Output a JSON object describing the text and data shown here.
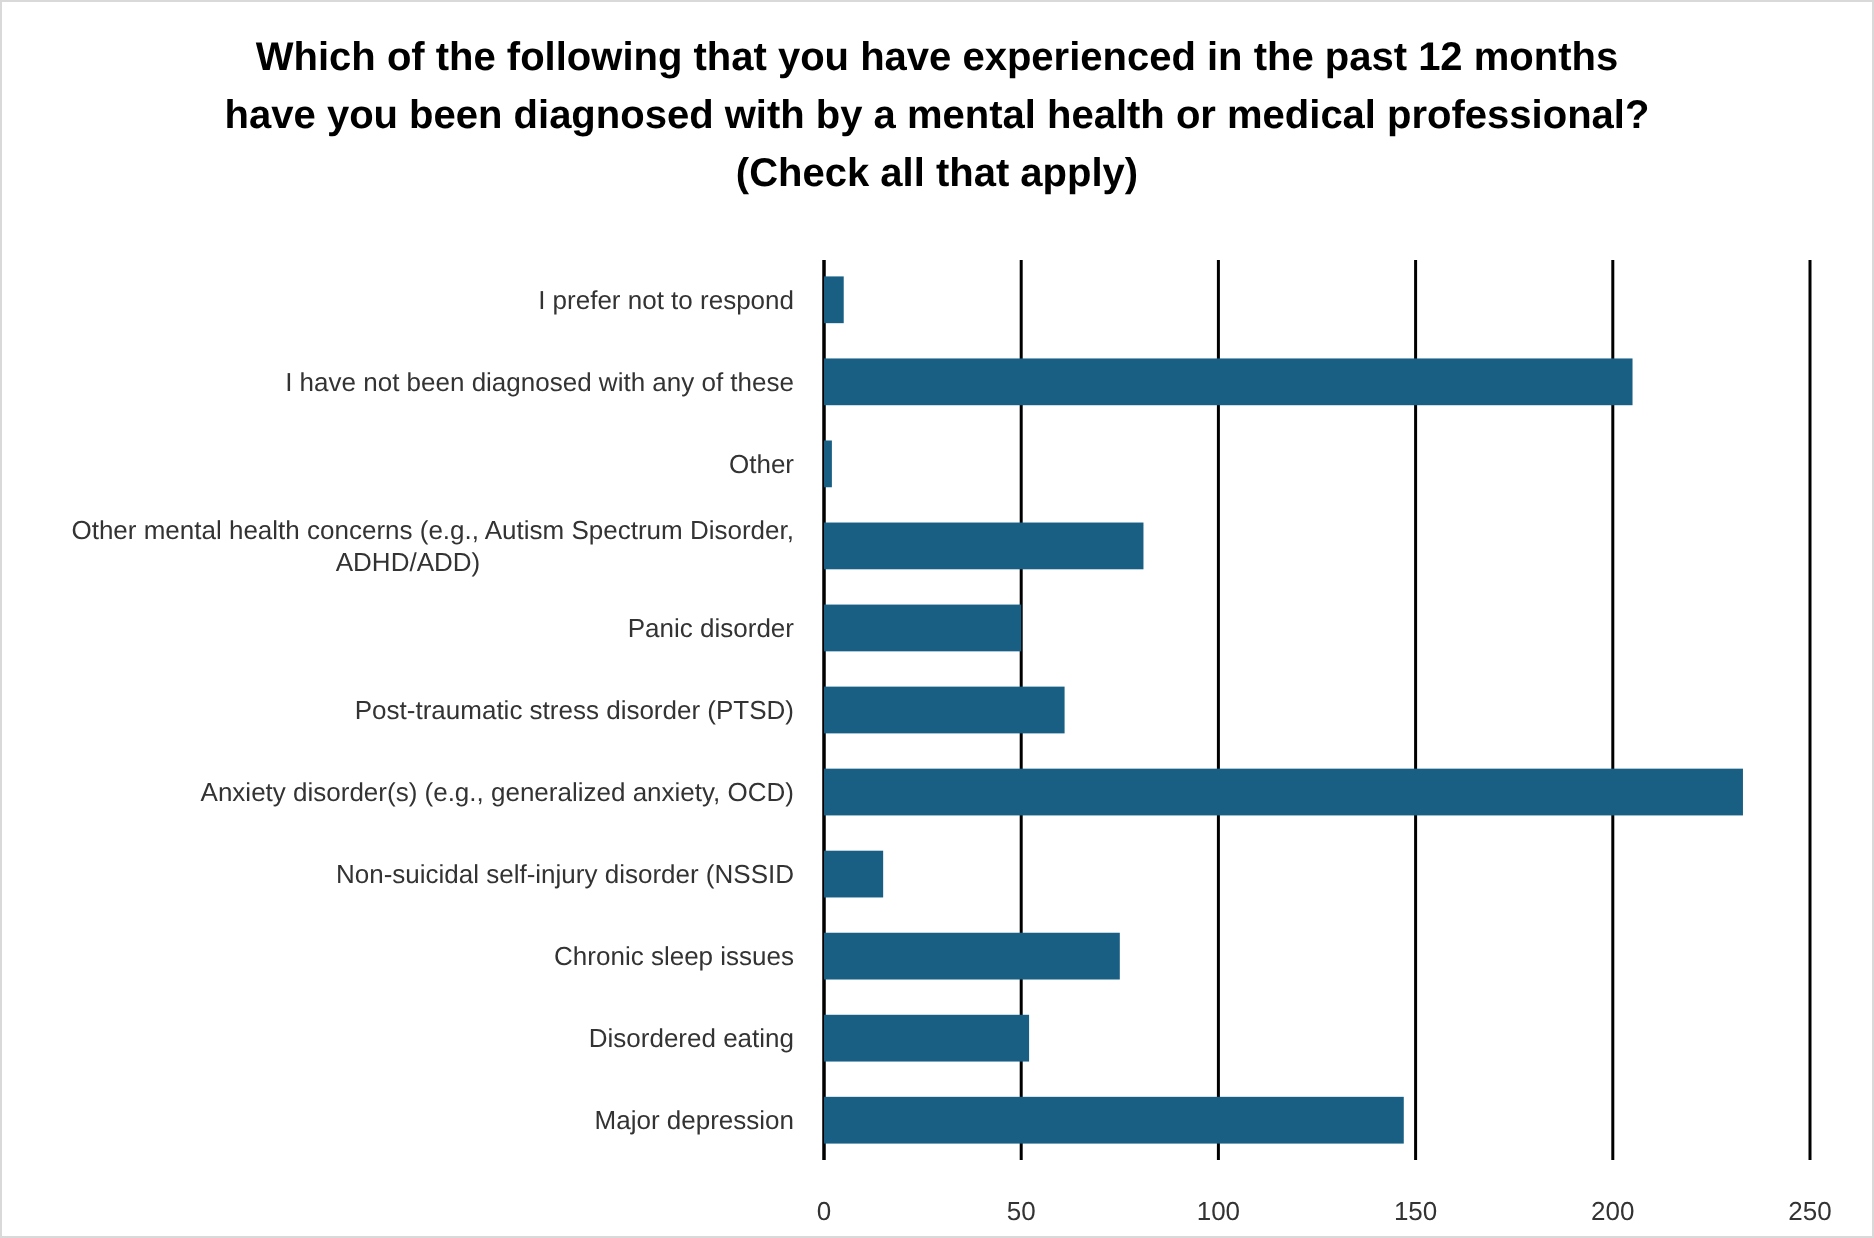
{
  "chart_data": {
    "type": "bar",
    "orientation": "horizontal",
    "title": "Which of the following that you have experienced in the past 12 months\nhave you been diagnosed with by a mental health or medical professional?\n(Check all that apply)",
    "categories": [
      "I prefer not to respond",
      "I have not been diagnosed with any of these",
      "Other",
      "Other mental health concerns (e.g., Autism Spectrum Disorder, ADHD/ADD)",
      "Panic disorder",
      "Post-traumatic stress disorder (PTSD)",
      "Anxiety disorder(s) (e.g., generalized anxiety, OCD)",
      "Non-suicidal self-injury disorder (NSSID",
      "Chronic sleep issues",
      "Disordered eating",
      "Major depression"
    ],
    "values": [
      5,
      205,
      2,
      81,
      50,
      61,
      233,
      15,
      75,
      52,
      147
    ],
    "color": "#185f83",
    "xlim": [
      0,
      250
    ],
    "xticks": [
      0,
      50,
      100,
      150,
      200,
      250
    ],
    "grid": "x"
  }
}
